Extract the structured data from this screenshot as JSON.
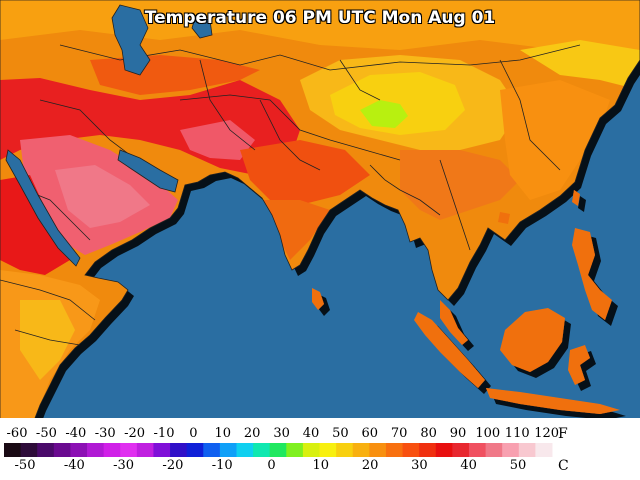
{
  "title": "Temperature 06 PM UTC Mon Aug 01",
  "colors": {
    "ocean": "#2a6ea2",
    "border": "#222222"
  },
  "legend": {
    "f_ticks": [
      "-60",
      "-50",
      "-40",
      "-30",
      "-20",
      "-10",
      "0",
      "10",
      "20",
      "30",
      "40",
      "50",
      "60",
      "70",
      "80",
      "90",
      "100",
      "110",
      "120"
    ],
    "c_ticks": [
      "-50",
      "-40",
      "-30",
      "-20",
      "-10",
      "0",
      "10",
      "20",
      "30",
      "40",
      "50"
    ],
    "f_unit": "F",
    "c_unit": "C",
    "colorbar": [
      "#1a0a14",
      "#2e0c3a",
      "#4a0a6a",
      "#6a0a90",
      "#8c10b4",
      "#b01ad4",
      "#d020e8",
      "#e030f0",
      "#c020e0",
      "#8010d8",
      "#3010c8",
      "#1020d8",
      "#1060f0",
      "#10a0f8",
      "#10d0f0",
      "#10e8b0",
      "#20e860",
      "#80f020",
      "#d8f010",
      "#f8f010",
      "#f8d010",
      "#f8b010",
      "#f89010",
      "#f87010",
      "#f85010",
      "#f03010",
      "#e81010",
      "#e82830",
      "#f05060",
      "#f07888",
      "#f8a0b0",
      "#f8c8d0",
      "#f8e8ec"
    ]
  }
}
